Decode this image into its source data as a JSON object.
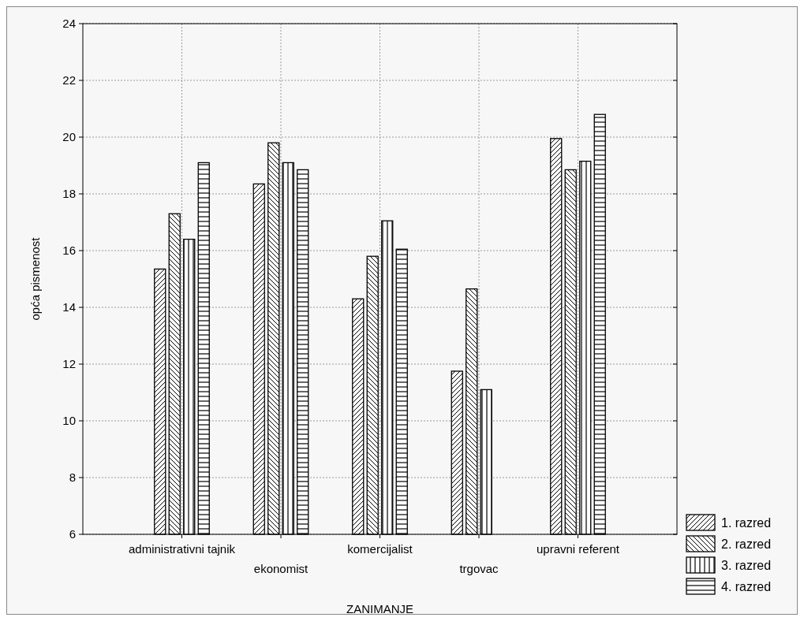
{
  "chart_data": {
    "type": "bar",
    "xlabel": "ZANIMANJE",
    "ylabel": "opća pismenost",
    "categories": [
      "administrativni tajnik",
      "ekonomist",
      "komercijalist",
      "trgovac",
      "upravni referent"
    ],
    "series": [
      {
        "name": "1. razred",
        "color": "#000000",
        "values": [
          15.35,
          18.35,
          14.3,
          11.75,
          19.95
        ]
      },
      {
        "name": "2. razred",
        "color": "#000000",
        "values": [
          17.3,
          19.8,
          15.8,
          14.65,
          18.85
        ]
      },
      {
        "name": "3. razred",
        "color": "#000000",
        "values": [
          16.4,
          19.1,
          17.05,
          11.1,
          19.15
        ]
      },
      {
        "name": "4. razred",
        "color": "#000000",
        "values": [
          19.1,
          18.85,
          16.05,
          null,
          20.8
        ]
      }
    ],
    "ylim": [
      6,
      24
    ],
    "yticks": [
      6,
      8,
      10,
      12,
      14,
      16,
      18,
      20,
      22,
      24
    ],
    "grid": true,
    "legend": "right"
  }
}
